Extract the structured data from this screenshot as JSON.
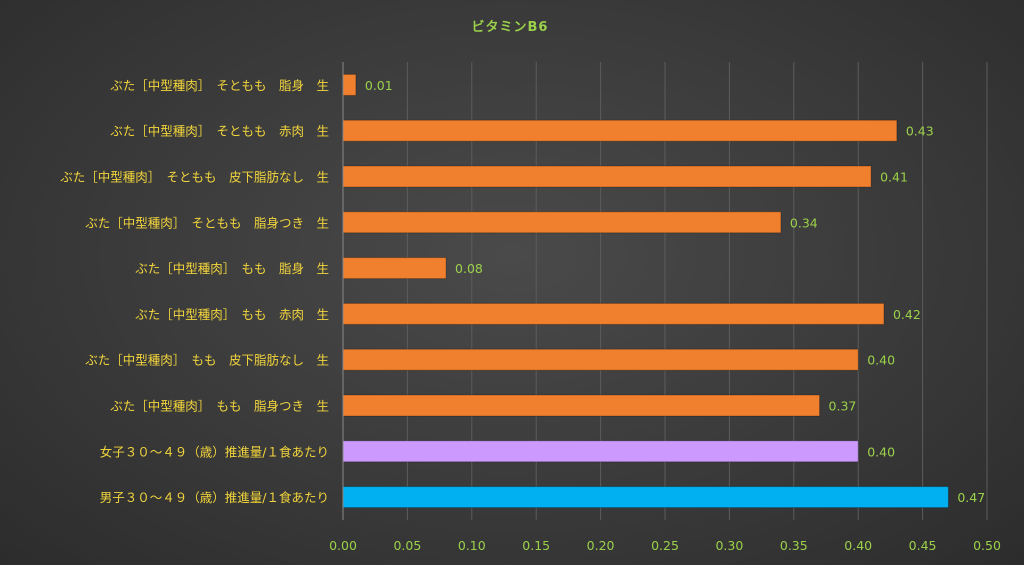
{
  "chart_data": {
    "type": "bar",
    "orientation": "horizontal",
    "title": "ビタミンB6",
    "categories": [
      "ぶた［中型種肉］　そともも　脂身　生",
      "ぶた［中型種肉］　そともも　赤肉　生",
      "ぶた［中型種肉］　そともも　皮下脂肪なし　生",
      "ぶた［中型種肉］　そともも　脂身つき　生",
      "ぶた［中型種肉］　もも　脂身　生",
      "ぶた［中型種肉］　もも　赤肉　生",
      "ぶた［中型種肉］　もも　皮下脂肪なし　生",
      "ぶた［中型種肉］　もも　脂身つき　生",
      "女子３０～４９（歳）推進量/１食あたり",
      "男子３０～４９（歳）推進量/１食あたり"
    ],
    "values": [
      0.01,
      0.43,
      0.41,
      0.34,
      0.08,
      0.42,
      0.4,
      0.37,
      0.4,
      0.47
    ],
    "value_labels": [
      "0.01",
      "0.43",
      "0.41",
      "0.34",
      "0.08",
      "0.42",
      "0.40",
      "0.37",
      "0.40",
      "0.47"
    ],
    "bar_colors": [
      "#f07f2e",
      "#f07f2e",
      "#f07f2e",
      "#f07f2e",
      "#f07f2e",
      "#f07f2e",
      "#f07f2e",
      "#f07f2e",
      "#cc99ff",
      "#00b0f0"
    ],
    "xlim": [
      0,
      0.5
    ],
    "xticks": [
      "0.00",
      "0.05",
      "0.10",
      "0.15",
      "0.20",
      "0.25",
      "0.30",
      "0.35",
      "0.40",
      "0.45",
      "0.50"
    ],
    "xlabel": "",
    "ylabel": "",
    "grid": true,
    "legend": "none"
  }
}
